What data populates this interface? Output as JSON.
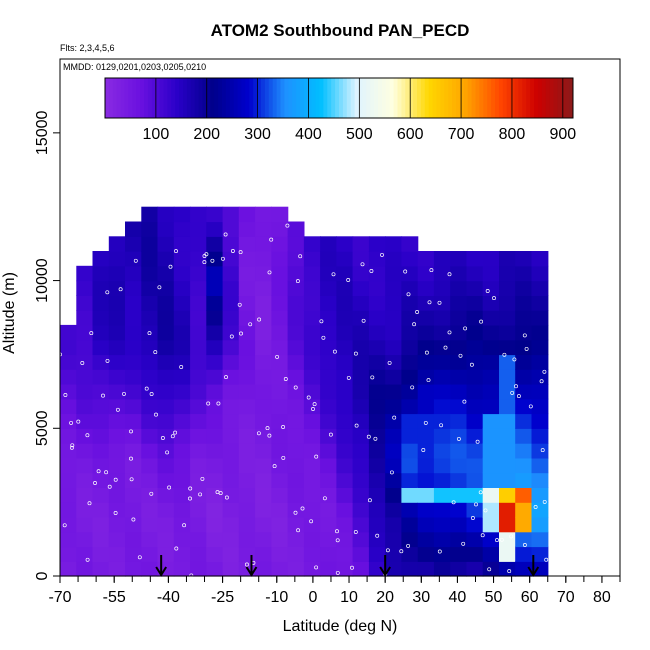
{
  "chart_data": {
    "type": "heatmap",
    "title": "ATOM2 Southbound PAN_PECD",
    "note_flights": "Flts: 2,3,4,5,6",
    "note_dates": "MMDD: 0129,0201,0203,0205,0210",
    "xlabel": "Latitude (deg N)",
    "ylabel": "Altitude (m)",
    "xlim": [
      -70,
      85
    ],
    "ylim": [
      0,
      17500
    ],
    "x_ticks": [
      -70,
      -55,
      -40,
      -25,
      -10,
      0,
      10,
      20,
      30,
      40,
      50,
      60,
      70,
      80
    ],
    "y_ticks": [
      0,
      5000,
      10000,
      15000
    ],
    "colorbar": {
      "min": 0,
      "max": 920,
      "ticks": [
        100,
        200,
        300,
        400,
        500,
        600,
        700,
        800,
        900
      ],
      "colors": [
        "#8a2be2",
        "#6a10e0",
        "#2a00c8",
        "#00008b",
        "#0000cd",
        "#1e90ff",
        "#00bfff",
        "#e0f4ff",
        "#ffffe0",
        "#ffd700",
        "#ffa500",
        "#ff4500",
        "#cd0000",
        "#8b1a1a"
      ]
    },
    "arrow_latitudes": [
      -42,
      -17,
      20,
      61
    ],
    "grid": false,
    "legend": "top-colorbar",
    "profiles": [
      {
        "lat": -70.0,
        "top": 8400,
        "base": [
          40,
          40,
          60,
          80,
          110,
          100,
          70
        ]
      },
      {
        "lat": -65.5,
        "top": 10500,
        "base": [
          45,
          40,
          55,
          90,
          120,
          130,
          110
        ]
      },
      {
        "lat": -61.0,
        "top": 10900,
        "base": [
          45,
          40,
          50,
          100,
          160,
          150,
          130
        ]
      },
      {
        "lat": -56.5,
        "top": 11400,
        "base": [
          45,
          40,
          50,
          110,
          150,
          170,
          160
        ]
      },
      {
        "lat": -52.0,
        "top": 11900,
        "base": [
          45,
          40,
          50,
          100,
          140,
          160,
          170
        ]
      },
      {
        "lat": -47.5,
        "top": 12300,
        "base": [
          45,
          40,
          60,
          120,
          170,
          180,
          180
        ]
      },
      {
        "lat": -43.0,
        "top": 12300,
        "base": [
          45,
          40,
          70,
          140,
          190,
          170,
          160
        ]
      },
      {
        "lat": -38.5,
        "top": 12300,
        "base": [
          50,
          40,
          70,
          130,
          160,
          150,
          140
        ]
      },
      {
        "lat": -34.0,
        "top": 12300,
        "base": [
          45,
          35,
          50,
          90,
          120,
          130,
          120
        ]
      },
      {
        "lat": -29.5,
        "top": 12300,
        "base": [
          40,
          30,
          40,
          70,
          180,
          250,
          130
        ]
      },
      {
        "lat": -25.0,
        "top": 12300,
        "base": [
          40,
          30,
          40,
          60,
          110,
          120,
          110
        ]
      },
      {
        "lat": -20.5,
        "top": 12300,
        "base": [
          40,
          30,
          40,
          50,
          60,
          50,
          60
        ]
      },
      {
        "lat": -16.0,
        "top": 12300,
        "base": [
          40,
          30,
          40,
          40,
          40,
          40,
          40
        ]
      },
      {
        "lat": -11.5,
        "top": 12300,
        "base": [
          40,
          35,
          45,
          50,
          60,
          60,
          60
        ]
      },
      {
        "lat": -7.0,
        "top": 11800,
        "base": [
          45,
          40,
          50,
          70,
          90,
          100,
          100
        ]
      },
      {
        "lat": -2.5,
        "top": 11500,
        "base": [
          45,
          40,
          60,
          90,
          120,
          130,
          130
        ]
      },
      {
        "lat": 2.0,
        "top": 11500,
        "base": [
          50,
          50,
          80,
          120,
          150,
          150,
          140
        ]
      },
      {
        "lat": 6.5,
        "top": 11500,
        "base": [
          60,
          70,
          110,
          150,
          160,
          150,
          140
        ]
      },
      {
        "lat": 11.0,
        "top": 11500,
        "base": [
          80,
          100,
          140,
          180,
          160,
          140,
          130
        ]
      },
      {
        "lat": 15.5,
        "top": 11500,
        "base": [
          120,
          150,
          200,
          200,
          160,
          140,
          130
        ]
      },
      {
        "lat": 20.0,
        "top": 11500,
        "base": [
          160,
          190,
          270,
          210,
          160,
          140,
          130
        ]
      },
      {
        "lat": 24.5,
        "top": 11500,
        "base": [
          180,
          240,
          320,
          250,
          180,
          150,
          130
        ]
      },
      {
        "lat": 29.0,
        "top": 10800,
        "base": [
          170,
          260,
          310,
          260,
          190,
          150,
          130
        ]
      },
      {
        "lat": 33.5,
        "top": 10800,
        "base": [
          170,
          280,
          330,
          270,
          200,
          160,
          130
        ]
      },
      {
        "lat": 38.0,
        "top": 10800,
        "base": [
          170,
          290,
          320,
          280,
          210,
          160,
          130
        ]
      },
      {
        "lat": 42.5,
        "top": 10800,
        "base": [
          170,
          300,
          320,
          270,
          210,
          160,
          140
        ]
      },
      {
        "lat": 47.0,
        "top": 10800,
        "base": [
          180,
          320,
          300,
          260,
          200,
          160,
          140
        ]
      },
      {
        "lat": 51.5,
        "top": 10800,
        "base": [
          220,
          360,
          320,
          270,
          210,
          170,
          140
        ]
      },
      {
        "lat": 56.0,
        "top": 10800,
        "base": [
          250,
          400,
          340,
          280,
          210,
          170,
          140
        ]
      },
      {
        "lat": 60.5,
        "top": 10800,
        "base": [
          260,
          380,
          320,
          280,
          200,
          170,
          140
        ]
      }
    ],
    "hotspots": [
      {
        "lat": 25,
        "lat2": 31,
        "alt": 2300,
        "alt2": 3200,
        "value": 460
      },
      {
        "lat": 31,
        "lat2": 45,
        "alt": 2300,
        "alt2": 3200,
        "value": 430
      },
      {
        "lat": 45,
        "lat2": 52,
        "alt": 2300,
        "alt2": 3200,
        "value": 520
      },
      {
        "lat": 52,
        "lat2": 55,
        "alt": 2300,
        "alt2": 3200,
        "value": 650
      },
      {
        "lat": 55,
        "lat2": 58,
        "alt": 2300,
        "alt2": 3200,
        "value": 760
      },
      {
        "lat": 49,
        "lat2": 52,
        "alt": 1300,
        "alt2": 2300,
        "value": 480
      },
      {
        "lat": 52,
        "lat2": 56,
        "alt": 1300,
        "alt2": 2300,
        "value": 820
      },
      {
        "lat": 56,
        "lat2": 58,
        "alt": 1300,
        "alt2": 2300,
        "value": 700
      },
      {
        "lat": 46,
        "lat2": 49,
        "alt": 1300,
        "alt2": 2300,
        "value": 320
      },
      {
        "lat": 52,
        "lat2": 56,
        "alt": 700,
        "alt2": 1300,
        "value": 520
      },
      {
        "lat": 48,
        "lat2": 52,
        "alt": 3200,
        "alt2": 5500,
        "value": 360
      },
      {
        "lat": 52,
        "lat2": 56,
        "alt": 3200,
        "alt2": 7500,
        "value": 330
      },
      {
        "lat": 26,
        "lat2": 40,
        "alt": 4200,
        "alt2": 5400,
        "value": 300
      },
      {
        "lat": 27,
        "lat2": 36,
        "alt": 5400,
        "alt2": 6500,
        "value": 270
      },
      {
        "lat": -30,
        "lat2": -27,
        "alt": 9500,
        "alt2": 10500,
        "value": 260
      }
    ]
  }
}
